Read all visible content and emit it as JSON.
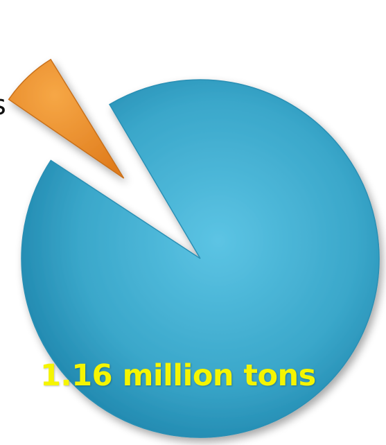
{
  "chart_data": {
    "type": "pie",
    "title": "",
    "exploded": true,
    "legend": "none",
    "slices": [
      {
        "label": "1.16 million tons",
        "fraction": 0.93,
        "color": "#38a6c9",
        "label_color": "#f5f500"
      },
      {
        "label": "",
        "fraction": 0.07,
        "color": "#f08c2a"
      }
    ],
    "cropped_text": "s"
  }
}
